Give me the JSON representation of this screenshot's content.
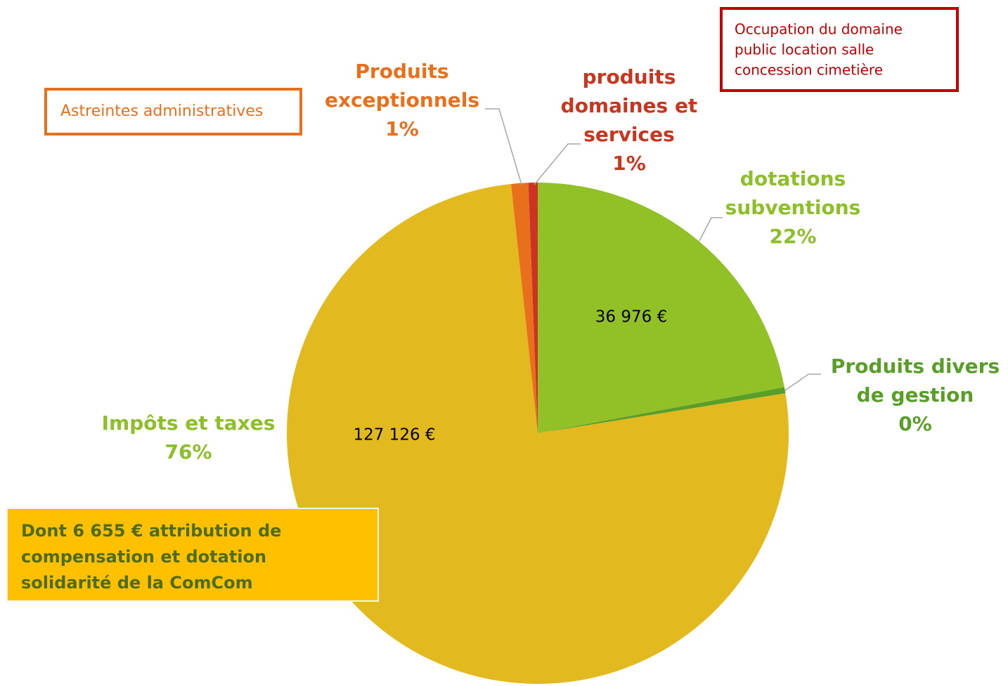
{
  "chart_data": {
    "type": "pie",
    "categories": [
      "dotations subventions",
      "Produits divers de gestion",
      "Impôts et taxes",
      "Produits exceptionnels",
      "produits domaines et services"
    ],
    "values": [
      22.1,
      0.4,
      76.0,
      1.1,
      0.6
    ],
    "value_labels": [
      "22%",
      "0%",
      "76%",
      "1%",
      "1%"
    ],
    "colors": [
      "#92c127",
      "#5a9e2a",
      "#e3b920",
      "#e8701c",
      "#cc3322"
    ],
    "label_colors": [
      "#8dbf2a",
      "#5a9e2a",
      "#8dbf2a",
      "#e8701c",
      "#c9361f"
    ],
    "amount_labels": [
      {
        "category": "dotations subventions",
        "text": "36 976 €"
      },
      {
        "category": "Impôts et taxes",
        "text": "127 126 €"
      }
    ],
    "annotations": [
      {
        "lines": [
          "Astreintes administratives"
        ],
        "color": "#e8701c"
      },
      {
        "lines": [
          "Occupation du domaine",
          "public location salle",
          "concession cimetière"
        ],
        "color": "#c00000"
      },
      {
        "lines": [
          "Dont 6 655 € attribution de",
          "compensation et dotation",
          "solidarité de la ComCom"
        ],
        "color": "#ffc000"
      }
    ]
  }
}
